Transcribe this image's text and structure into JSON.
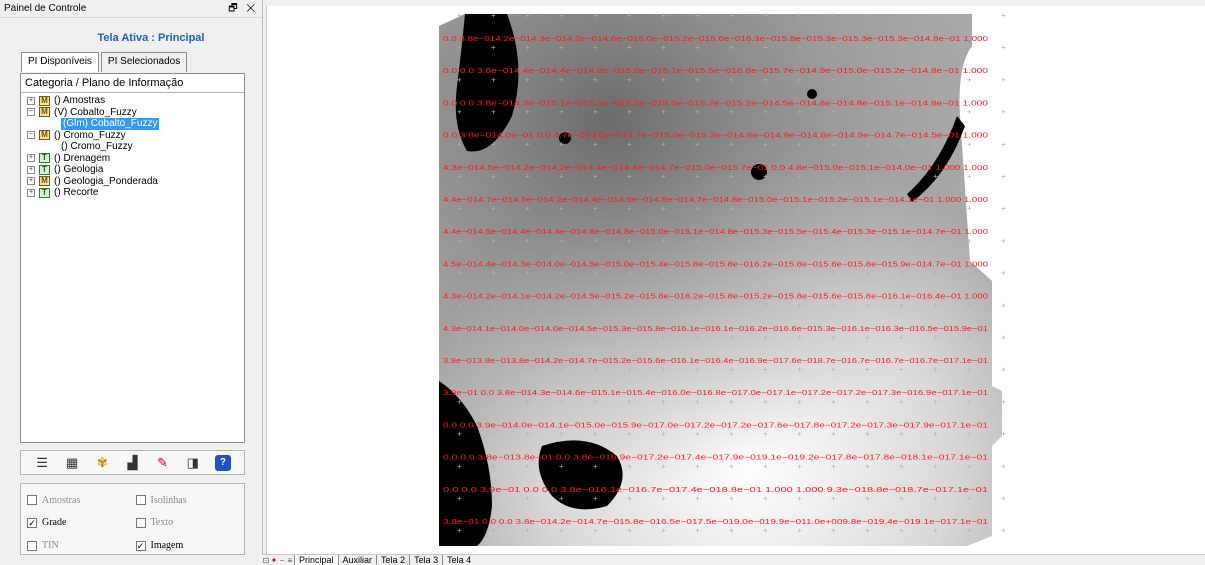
{
  "panel": {
    "title": "Painel de Controle",
    "controls": "🗗 ✕",
    "active_screen": "Tela Ativa : Principal",
    "tabs": [
      {
        "label": "PI Disponíveis",
        "active": true
      },
      {
        "label": "PI Selecionados",
        "active": false
      }
    ],
    "tree_header": "Categoria / Plano de Informação",
    "tree": [
      {
        "label": "() Amostras",
        "badge": "M",
        "expander": "+"
      },
      {
        "label": "(V) Cobalto_Fuzzy",
        "badge": "M",
        "expander": "−"
      },
      {
        "label": "(Glm) Cobalto_Fuzzy",
        "child": true,
        "selected": true
      },
      {
        "label": "() Cromo_Fuzzy",
        "badge": "M",
        "expander": "−"
      },
      {
        "label": "() Cromo_Fuzzy",
        "child": true
      },
      {
        "label": "() Drenagem",
        "badge": "T",
        "expander": "+"
      },
      {
        "label": "() Geologia",
        "badge": "T",
        "expander": "+"
      },
      {
        "label": "() Geologia_Ponderada",
        "badge": "M",
        "expander": "+"
      },
      {
        "label": "() Recorte",
        "badge": "T",
        "expander": "+"
      }
    ],
    "toolbar_icons": [
      "list-icon",
      "table-icon",
      "paint-icon",
      "chart-icon",
      "pencil-icon",
      "layout-icon",
      "help-icon"
    ],
    "options": [
      {
        "label": "Amostras",
        "checked": false,
        "dim": true
      },
      {
        "label": "Isolinhas",
        "checked": false,
        "dim": true
      },
      {
        "label": "Grade",
        "checked": true,
        "dim": false
      },
      {
        "label": "Texto",
        "checked": false,
        "dim": true
      },
      {
        "label": "TIN",
        "checked": false,
        "dim": true
      },
      {
        "label": "Imagem",
        "checked": true,
        "dim": false
      }
    ]
  },
  "grid_rows": [
    "0.0  3.8e−014.2e−014.3e−014.2e−014.6e−015.0e−015.2e−015.6e−016.3e−015.8e−015.3e−015.3e−015.3e−014.8e−01  1.000",
    "0.0  0.0  3.6e−014.4e−014.4e−014.8e−015.0e−015.1e−015.5e−016.8e−015.7e−014.9e−015.0e−015.2e−014.8e−01 1.000",
    "0.0  0.0  3.8e−014.3e−015.1e−015.0e−015.2e−015.0e−015.2e−015.2e−014.5e−014.8e−014.8e−015.1e−014.8e−01 1.000",
    "0.0  3.8e−014.0e−01  0.0  4.7e−014.0e−014.7e−015.0e−015.3e−014.8e−014.8e−014.8e−014.9e−014.7e−014.5e−01 1.000",
    "4.3e−014.5e−014.2e−014.2e−014.4e−014.4e−014.7e−015.0e−015.7e−01  0.0  4.8e−015.0e−015.1e−014.0e−01 1.000  1.000",
    "4.4e−014.7e−014.5e−014.2e−014.4e−014.5e−014.8e−014.7e−014.8e−015.0e−015.1e−015.2e−015.1e−014.1e−01 1.000  1.000",
    "4.4e−014.5e−014.4e−014.4e−014.8e−014.8e−015.0e−015.1e−014.8e−015.3e−015.5e−015.4e−015.3e−015.1e−014.7e−01 1.000",
    "4.5e−014.4e−014.3e−014.0e−014.5e−015.0e−015.4e−015.8e−015.8e−016.2e−015.8e−015.6e−015.8e−015.9e−014.7e−01 1.000",
    "4.3e−014.2e−014.1e−014.2e−014.5e−015.2e−015.8e−016.2e−015.8e−015.2e−015.8e−015.6e−015.8e−016.1e−016.4e−01 1.000",
    "4.3e−014.1e−014.0e−014.0e−014.5e−015.3e−015.8e−016.1e−016.1e−016.2e−016.6e−015.3e−016.1e−016.3e−016.5e−015.9e−01",
    "3.9e−013.8e−013.8e−014.2e−014.7e−015.2e−015.6e−016.1e−016.4e−016.9e−017.6e−018.7e−016.7e−016.7e−016.7e−017.1e−01",
    "3.9e−01  0.0  3.8e−014.3e−014.6e−015.1e−015.4e−016.0e−016.8e−017.0e−017.1e−017.2e−017.2e−017.3e−016.9e−017.1e−01",
    "0.0  0.0  3.9e−014.0e−014.1e−015.0e−015.9e−017.0e−017.2e−017.2e−017.6e−017.8e−017.2e−017.3e−017.9e−017.1e−01",
    "0.0  0.0  3.8e−013.8e−01  0.0  3.8e−016.9e−017.2e−017.4e−017.9e−019.1e−019.2e−017.8e−017.8e−018.1e−017.1e−01",
    "0.0  0.0  3.9e−01  0.0  0.0  3.8e−016.1e−016.7e−017.4e−018.8e−01 1.000  1.000 9.3e−018.8e−018.7e−017.1e−01",
    "3.8e−01  0.0  0.0  3.8e−014.2e−014.7e−015.8e−016.5e−017.5e−019.0e−019.9e−011.0e+009.8e−019.4e−019.1e−017.1e−01"
  ],
  "bottom_bar": {
    "nav": [
      "⊡",
      "✦",
      "−",
      "≡"
    ],
    "tabs": [
      {
        "label": "Principal",
        "active": true
      },
      {
        "label": "Auxiliar",
        "active": false
      },
      {
        "label": "Tela 2",
        "active": false
      },
      {
        "label": "Tela 3",
        "active": false
      },
      {
        "label": "Tela 4",
        "active": false
      }
    ]
  },
  "colors": {
    "grid_text": "#ff1a1a",
    "active_screen": "#1f5fc9",
    "selection": "#3399ff"
  }
}
